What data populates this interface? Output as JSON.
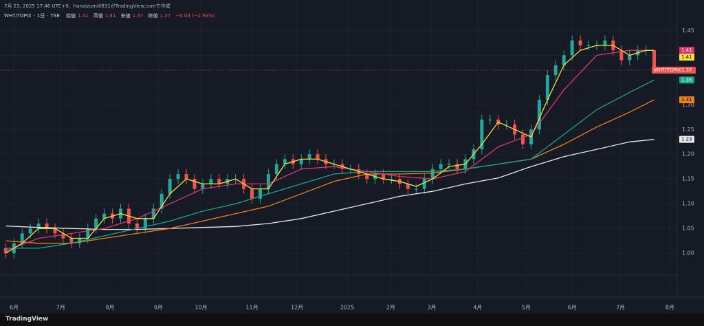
{
  "header": {
    "caption": "7月 23, 2025 17:46 UTC+9、hanaizumi0831がTradingView.comで作成",
    "brand": "TradingView"
  },
  "chart_data": {
    "type": "candlestick",
    "symbol": "WHT/TOPIX",
    "interval": "1日",
    "exchange": "TSE",
    "ohlc_labels": [
      "始値",
      "高値",
      "安値",
      "終値"
    ],
    "change": "−0.04 (−2.93%)",
    "up_color": "#26a69a",
    "down_color": "#ef5350",
    "xlim": [
      -0.7,
      81.8
    ],
    "xticks": [
      {
        "value": 1.0,
        "label": "6月"
      },
      {
        "value": 6.7,
        "label": "7月"
      },
      {
        "value": 12.7,
        "label": "8月"
      },
      {
        "value": 18.6,
        "label": "9月"
      },
      {
        "value": 23.8,
        "label": "10月"
      },
      {
        "value": 30.0,
        "label": "11月"
      },
      {
        "value": 35.5,
        "label": "12月"
      },
      {
        "value": 41.6,
        "label": "2025"
      },
      {
        "value": 46.9,
        "label": "2月"
      },
      {
        "value": 51.9,
        "label": "3月"
      },
      {
        "value": 57.5,
        "label": "4月"
      },
      {
        "value": 63.4,
        "label": "5月"
      },
      {
        "value": 69.0,
        "label": "6月"
      },
      {
        "value": 74.9,
        "label": "7月"
      },
      {
        "value": 80.9,
        "label": "8月"
      }
    ],
    "ylim": [
      0.914,
      1.47
    ],
    "yticks": [
      {
        "value": 1.0,
        "label": "1.00"
      },
      1.05,
      {
        "value": 1.1,
        "label": "1.10"
      },
      1.15,
      {
        "value": 1.2,
        "label": "1.20"
      },
      1.25,
      {
        "value": 1.3,
        "label": "1.30"
      },
      1.35,
      {
        "value": 1.4,
        "label": "1.40"
      },
      1.45
    ],
    "grid": true,
    "candles": [
      [
        1.01,
        1.02,
        0.99,
        1.0
      ],
      [
        1.0,
        1.03,
        0.99,
        1.02
      ],
      [
        1.02,
        1.05,
        1.01,
        1.04
      ],
      [
        1.04,
        1.06,
        1.03,
        1.05
      ],
      [
        1.05,
        1.07,
        1.04,
        1.06
      ],
      [
        1.06,
        1.07,
        1.04,
        1.05
      ],
      [
        1.05,
        1.06,
        1.03,
        1.04
      ],
      [
        1.04,
        1.05,
        1.02,
        1.03
      ],
      [
        1.03,
        1.04,
        1.01,
        1.02
      ],
      [
        1.02,
        1.04,
        1.01,
        1.03
      ],
      [
        1.03,
        1.06,
        1.02,
        1.05
      ],
      [
        1.05,
        1.08,
        1.04,
        1.07
      ],
      [
        1.07,
        1.09,
        1.06,
        1.08
      ],
      [
        1.08,
        1.09,
        1.06,
        1.07
      ],
      [
        1.07,
        1.1,
        1.06,
        1.09
      ],
      [
        1.09,
        1.1,
        1.05,
        1.06
      ],
      [
        1.06,
        1.07,
        1.04,
        1.05
      ],
      [
        1.05,
        1.08,
        1.04,
        1.07
      ],
      [
        1.07,
        1.1,
        1.06,
        1.09
      ],
      [
        1.09,
        1.13,
        1.08,
        1.12
      ],
      [
        1.12,
        1.16,
        1.11,
        1.15
      ],
      [
        1.15,
        1.17,
        1.14,
        1.16
      ],
      [
        1.16,
        1.17,
        1.14,
        1.15
      ],
      [
        1.15,
        1.16,
        1.12,
        1.13
      ],
      [
        1.13,
        1.15,
        1.12,
        1.14
      ],
      [
        1.14,
        1.16,
        1.13,
        1.15
      ],
      [
        1.15,
        1.16,
        1.13,
        1.14
      ],
      [
        1.14,
        1.16,
        1.13,
        1.15
      ],
      [
        1.15,
        1.16,
        1.14,
        1.15
      ],
      [
        1.15,
        1.16,
        1.12,
        1.13
      ],
      [
        1.13,
        1.14,
        1.1,
        1.11
      ],
      [
        1.11,
        1.14,
        1.1,
        1.13
      ],
      [
        1.13,
        1.17,
        1.12,
        1.16
      ],
      [
        1.16,
        1.19,
        1.15,
        1.18
      ],
      [
        1.18,
        1.2,
        1.17,
        1.19
      ],
      [
        1.19,
        1.2,
        1.17,
        1.18
      ],
      [
        1.18,
        1.2,
        1.17,
        1.19
      ],
      [
        1.19,
        1.21,
        1.18,
        1.2
      ],
      [
        1.2,
        1.21,
        1.18,
        1.19
      ],
      [
        1.19,
        1.2,
        1.17,
        1.18
      ],
      [
        1.18,
        1.19,
        1.17,
        1.18
      ],
      [
        1.18,
        1.19,
        1.16,
        1.17
      ],
      [
        1.17,
        1.18,
        1.16,
        1.17
      ],
      [
        1.17,
        1.18,
        1.15,
        1.16
      ],
      [
        1.16,
        1.17,
        1.14,
        1.15
      ],
      [
        1.15,
        1.17,
        1.14,
        1.16
      ],
      [
        1.16,
        1.17,
        1.14,
        1.15
      ],
      [
        1.15,
        1.16,
        1.14,
        1.15
      ],
      [
        1.15,
        1.16,
        1.13,
        1.14
      ],
      [
        1.14,
        1.15,
        1.12,
        1.13
      ],
      [
        1.13,
        1.14,
        1.12,
        1.13
      ],
      [
        1.13,
        1.16,
        1.12,
        1.15
      ],
      [
        1.15,
        1.18,
        1.14,
        1.17
      ],
      [
        1.17,
        1.19,
        1.16,
        1.18
      ],
      [
        1.18,
        1.19,
        1.17,
        1.18
      ],
      [
        1.18,
        1.19,
        1.16,
        1.17
      ],
      [
        1.17,
        1.2,
        1.16,
        1.19
      ],
      [
        1.19,
        1.22,
        1.18,
        1.21
      ],
      [
        1.21,
        1.28,
        1.2,
        1.27
      ],
      [
        1.27,
        1.28,
        1.26,
        1.27
      ],
      [
        1.27,
        1.28,
        1.25,
        1.26
      ],
      [
        1.26,
        1.27,
        1.25,
        1.26
      ],
      [
        1.26,
        1.27,
        1.23,
        1.24
      ],
      [
        1.24,
        1.25,
        1.21,
        1.22
      ],
      [
        1.22,
        1.26,
        1.21,
        1.25
      ],
      [
        1.25,
        1.32,
        1.24,
        1.31
      ],
      [
        1.31,
        1.37,
        1.3,
        1.36
      ],
      [
        1.36,
        1.39,
        1.35,
        1.38
      ],
      [
        1.38,
        1.41,
        1.37,
        1.4
      ],
      [
        1.4,
        1.44,
        1.39,
        1.43
      ],
      [
        1.43,
        1.44,
        1.41,
        1.42
      ],
      [
        1.42,
        1.43,
        1.41,
        1.42
      ],
      [
        1.42,
        1.43,
        1.41,
        1.42
      ],
      [
        1.42,
        1.44,
        1.41,
        1.43
      ],
      [
        1.43,
        1.44,
        1.4,
        1.41
      ],
      [
        1.41,
        1.42,
        1.38,
        1.39
      ],
      [
        1.39,
        1.41,
        1.38,
        1.4
      ],
      [
        1.4,
        1.42,
        1.39,
        1.41
      ],
      [
        1.41,
        1.42,
        1.4,
        1.41
      ],
      [
        1.41,
        1.41,
        1.37,
        1.37
      ]
    ],
    "series": [
      {
        "color": "#e8e8e8",
        "x": [
          0,
          4,
          8,
          12,
          16,
          20,
          24,
          28,
          32,
          36,
          40,
          44,
          48,
          52,
          56,
          60,
          64,
          68,
          72,
          76,
          79
        ],
        "values": [
          1.055,
          1.052,
          1.05,
          1.048,
          1.048,
          1.05,
          1.052,
          1.054,
          1.06,
          1.07,
          1.085,
          1.1,
          1.115,
          1.125,
          1.14,
          1.152,
          1.175,
          1.195,
          1.21,
          1.225,
          1.23
        ]
      },
      {
        "color": "#f0801a",
        "x": [
          0,
          4,
          8,
          12,
          16,
          20,
          24,
          28,
          32,
          36,
          40,
          44,
          48,
          52,
          56,
          60,
          64,
          68,
          72,
          76,
          79
        ],
        "values": [
          1.025,
          1.02,
          1.02,
          1.03,
          1.04,
          1.05,
          1.065,
          1.08,
          1.095,
          1.12,
          1.145,
          1.16,
          1.16,
          1.162,
          1.17,
          1.18,
          1.19,
          1.22,
          1.255,
          1.285,
          1.31
        ]
      },
      {
        "color": "#1aa58c",
        "x": [
          0,
          4,
          8,
          12,
          16,
          20,
          24,
          28,
          32,
          36,
          40,
          44,
          48,
          52,
          56,
          60,
          64,
          68,
          72,
          76,
          79
        ],
        "values": [
          1.01,
          1.01,
          1.02,
          1.035,
          1.05,
          1.065,
          1.085,
          1.1,
          1.12,
          1.14,
          1.16,
          1.165,
          1.165,
          1.165,
          1.17,
          1.18,
          1.19,
          1.24,
          1.29,
          1.325,
          1.35
        ]
      },
      {
        "color": "#e0356d",
        "x": [
          0,
          4,
          8,
          12,
          16,
          20,
          24,
          28,
          32,
          36,
          40,
          44,
          48,
          52,
          56,
          60,
          64,
          68,
          72,
          76,
          79
        ],
        "values": [
          1.005,
          1.03,
          1.04,
          1.05,
          1.07,
          1.1,
          1.13,
          1.14,
          1.14,
          1.17,
          1.175,
          1.165,
          1.155,
          1.15,
          1.165,
          1.215,
          1.24,
          1.33,
          1.4,
          1.41,
          1.41
        ]
      },
      {
        "color": "#f5e13c",
        "x": [
          0,
          2,
          4,
          6,
          8,
          10,
          12,
          14,
          16,
          18,
          20,
          22,
          24,
          26,
          28,
          30,
          32,
          34,
          36,
          38,
          40,
          42,
          44,
          46,
          48,
          50,
          52,
          54,
          56,
          58,
          60,
          62,
          64,
          66,
          68,
          70,
          72,
          74,
          76,
          78,
          79
        ],
        "values": [
          1.0,
          1.02,
          1.05,
          1.05,
          1.03,
          1.03,
          1.07,
          1.08,
          1.07,
          1.07,
          1.12,
          1.15,
          1.14,
          1.14,
          1.15,
          1.13,
          1.13,
          1.18,
          1.19,
          1.19,
          1.18,
          1.17,
          1.16,
          1.15,
          1.145,
          1.135,
          1.15,
          1.175,
          1.18,
          1.22,
          1.265,
          1.25,
          1.235,
          1.31,
          1.38,
          1.41,
          1.42,
          1.42,
          1.4,
          1.41,
          1.41
        ]
      }
    ]
  }
}
